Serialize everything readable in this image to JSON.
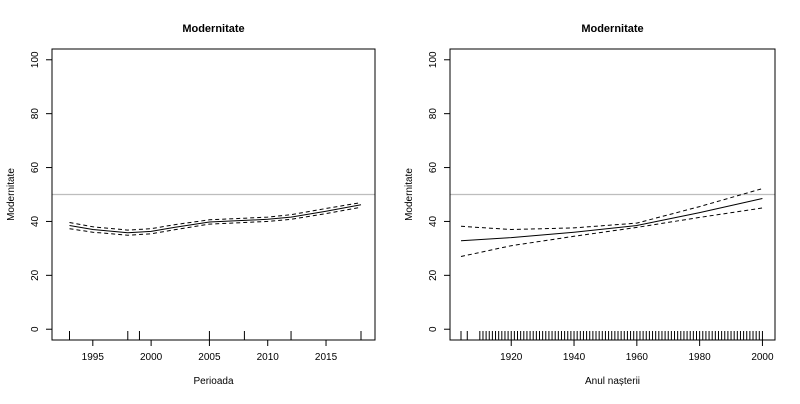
{
  "chart_data": [
    {
      "type": "line",
      "title": "Modernitate",
      "xlabel": "Perioada",
      "ylabel": "Modernitate",
      "xlim": [
        1991.5,
        2019.2
      ],
      "ylim": [
        -4,
        104
      ],
      "xticks": [
        1995,
        2000,
        2005,
        2010,
        2015
      ],
      "yticks": [
        0,
        20,
        40,
        60,
        80,
        100
      ],
      "reference_line": 50,
      "rug": [
        1993,
        1998,
        1999,
        2005,
        2008,
        2012,
        2018
      ],
      "x": [
        1993,
        1995,
        1998,
        2000,
        2002,
        2005,
        2008,
        2010,
        2012,
        2015,
        2018
      ],
      "series": [
        {
          "style": "solid",
          "values": [
            38.5,
            37,
            35.8,
            36.3,
            37.8,
            39.8,
            40.4,
            40.8,
            41.6,
            43.8,
            46.2
          ]
        },
        {
          "style": "dashed",
          "values": [
            39.6,
            38,
            36.8,
            37.3,
            38.8,
            40.6,
            41.2,
            41.6,
            42.5,
            44.8,
            47
          ]
        },
        {
          "style": "dashed",
          "values": [
            37.3,
            36,
            34.9,
            35.4,
            36.9,
            39,
            39.6,
            40,
            40.8,
            42.9,
            45.3
          ]
        }
      ]
    },
    {
      "type": "line",
      "title": "Modernitate",
      "xlabel": "Anul nașterii",
      "ylabel": "Modernitate",
      "xlim": [
        1900.5,
        2004
      ],
      "ylim": [
        -4,
        104
      ],
      "xticks": [
        1920,
        1940,
        1960,
        1980,
        2000
      ],
      "yticks": [
        0,
        20,
        40,
        60,
        80,
        100
      ],
      "reference_line": 50,
      "rug": [
        1904,
        1906,
        1910,
        1911,
        1912,
        1913,
        1914,
        1915,
        1916,
        1917,
        1918,
        1919,
        1920,
        1921,
        1922,
        1923,
        1924,
        1925,
        1926,
        1927,
        1928,
        1929,
        1930,
        1931,
        1932,
        1933,
        1934,
        1935,
        1936,
        1937,
        1938,
        1939,
        1940,
        1941,
        1942,
        1943,
        1944,
        1945,
        1946,
        1947,
        1948,
        1949,
        1950,
        1951,
        1952,
        1953,
        1954,
        1955,
        1956,
        1957,
        1958,
        1959,
        1960,
        1961,
        1962,
        1963,
        1964,
        1965,
        1966,
        1967,
        1968,
        1969,
        1970,
        1971,
        1972,
        1973,
        1974,
        1975,
        1976,
        1977,
        1978,
        1979,
        1980,
        1981,
        1982,
        1983,
        1984,
        1985,
        1986,
        1987,
        1988,
        1989,
        1990,
        1991,
        1992,
        1993,
        1994,
        1995,
        1996,
        1997,
        1998,
        1999,
        2000
      ],
      "x": [
        1904,
        1920,
        1940,
        1960,
        1980,
        2000
      ],
      "series": [
        {
          "style": "solid",
          "values": [
            32.8,
            34,
            36,
            38.5,
            43.3,
            48.5
          ]
        },
        {
          "style": "dashed",
          "values": [
            38.2,
            37,
            37.6,
            39.4,
            45.5,
            52.2
          ]
        },
        {
          "style": "dashed",
          "values": [
            27,
            31,
            34.5,
            37.8,
            41.5,
            45
          ]
        }
      ]
    }
  ]
}
